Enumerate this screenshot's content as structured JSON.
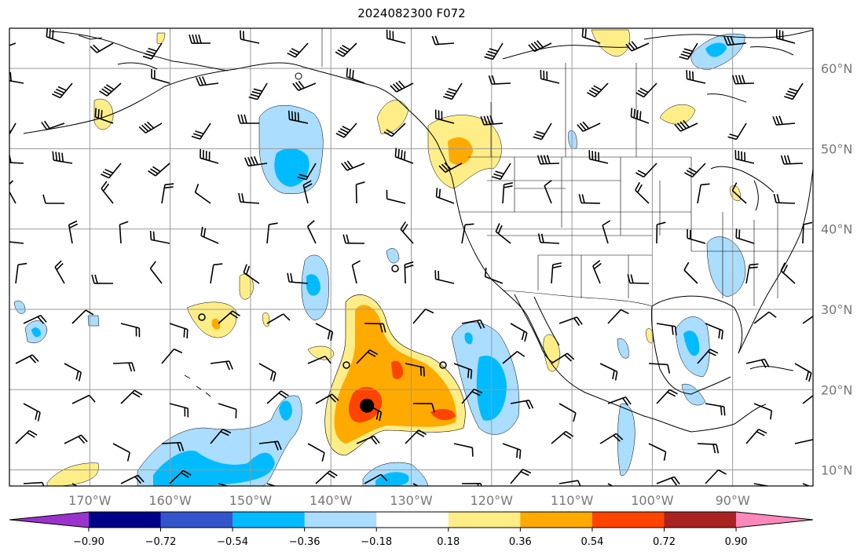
{
  "title": "2024082300 F072",
  "map": {
    "lon_range": [
      -180,
      -80
    ],
    "lat_range": [
      8,
      65
    ],
    "lon_ticks": [
      {
        "value": -170,
        "label": "170°W"
      },
      {
        "value": -160,
        "label": "160°W"
      },
      {
        "value": -150,
        "label": "150°W"
      },
      {
        "value": -140,
        "label": "140°W"
      },
      {
        "value": -130,
        "label": "130°W"
      },
      {
        "value": -120,
        "label": "120°W"
      },
      {
        "value": -110,
        "label": "110°W"
      },
      {
        "value": -100,
        "label": "100°W"
      },
      {
        "value": -90,
        "label": "90°W"
      }
    ],
    "lat_ticks": [
      {
        "value": 60,
        "label": "60°N"
      },
      {
        "value": 50,
        "label": "50°N"
      },
      {
        "value": 40,
        "label": "40°N"
      },
      {
        "value": 30,
        "label": "30°N"
      },
      {
        "value": 20,
        "label": "20°N"
      },
      {
        "value": 10,
        "label": "10°N"
      }
    ],
    "grid": true,
    "storm_center": {
      "lon": -135.5,
      "lat": 18
    }
  },
  "colorbar": {
    "ticks": [
      "−0.90",
      "−0.72",
      "−0.54",
      "−0.36",
      "−0.18",
      "0.18",
      "0.36",
      "0.54",
      "0.72",
      "0.90"
    ],
    "colors": {
      "lt_090": "#9933cc",
      "n090_n072": "#000088",
      "n072_n054": "#3355cc",
      "n054_n036": "#00bbff",
      "n036_n018": "#aaddff",
      "n018_018": "#ffffff",
      "p018_036": "#ffee88",
      "p036_054": "#ffaa00",
      "p054_072": "#ff4400",
      "p072_090": "#aa2222",
      "gt_090": "#ff88bb"
    }
  }
}
